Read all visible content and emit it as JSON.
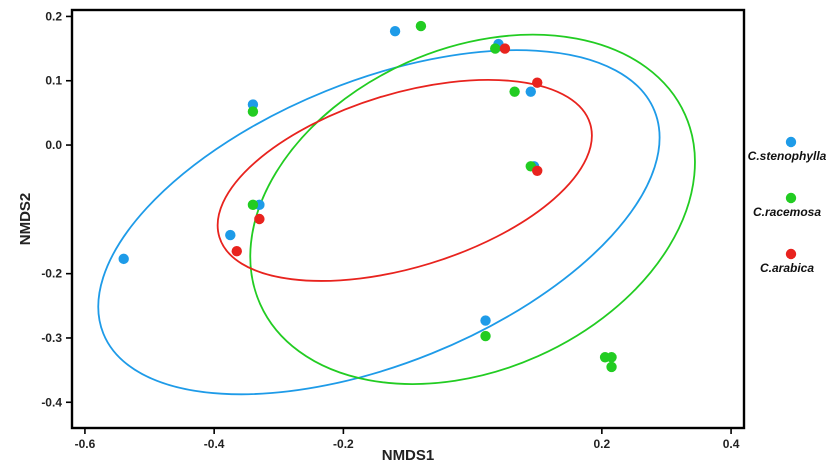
{
  "chart_data": {
    "type": "scatter",
    "xlabel": "NMDS1",
    "ylabel": "NMDS2",
    "xlim": [
      -0.62,
      0.42
    ],
    "ylim": [
      -0.44,
      0.21
    ],
    "x_ticks": [
      -0.6,
      -0.4,
      -0.2,
      0.2,
      0.4
    ],
    "x_tick_labels": [
      "-0.6",
      "-0.4",
      "-0.2",
      "0.2",
      "0.4"
    ],
    "y_ticks": [
      0.2,
      0.1,
      0.0,
      -0.2,
      -0.3,
      -0.4
    ],
    "y_tick_labels": [
      "0.2",
      "0.1",
      "0.0",
      "-0.2",
      "-0.3",
      "-0.4"
    ],
    "legend_position": "right",
    "series": [
      {
        "name": "C.stenophylla",
        "color": "#1e9be8",
        "points": [
          [
            -0.54,
            -0.177
          ],
          [
            -0.12,
            0.177
          ],
          [
            -0.34,
            0.063
          ],
          [
            -0.33,
            -0.093
          ],
          [
            -0.375,
            -0.14
          ],
          [
            0.04,
            0.157
          ],
          [
            0.09,
            0.083
          ],
          [
            0.095,
            -0.033
          ],
          [
            0.02,
            -0.273
          ]
        ]
      },
      {
        "name": "C.racemosa",
        "color": "#22cc22",
        "points": [
          [
            -0.08,
            0.185
          ],
          [
            -0.34,
            0.052
          ],
          [
            -0.34,
            -0.093
          ],
          [
            0.035,
            0.15
          ],
          [
            0.065,
            0.083
          ],
          [
            0.09,
            -0.033
          ],
          [
            0.02,
            -0.297
          ],
          [
            0.205,
            -0.33
          ],
          [
            0.215,
            -0.33
          ],
          [
            0.215,
            -0.345
          ]
        ]
      },
      {
        "name": "C.arabica",
        "color": "#e8231e",
        "points": [
          [
            -0.33,
            -0.115
          ],
          [
            -0.365,
            -0.165
          ],
          [
            0.05,
            0.15
          ],
          [
            0.1,
            0.097
          ],
          [
            0.1,
            -0.04
          ]
        ]
      }
    ],
    "ellipses": [
      {
        "series": "C.stenophylla",
        "color": "#1e9be8",
        "cx": -0.145,
        "cy": -0.12,
        "rx": 0.46,
        "ry": 0.22,
        "rotation_deg": 22
      },
      {
        "series": "C.racemosa",
        "color": "#22cc22",
        "cx": 0.0,
        "cy": -0.1,
        "rx": 0.36,
        "ry": 0.25,
        "rotation_deg": 24
      },
      {
        "series": "C.arabica",
        "color": "#e8231e",
        "cx": -0.105,
        "cy": -0.055,
        "rx": 0.3,
        "ry": 0.135,
        "rotation_deg": 17
      }
    ]
  }
}
